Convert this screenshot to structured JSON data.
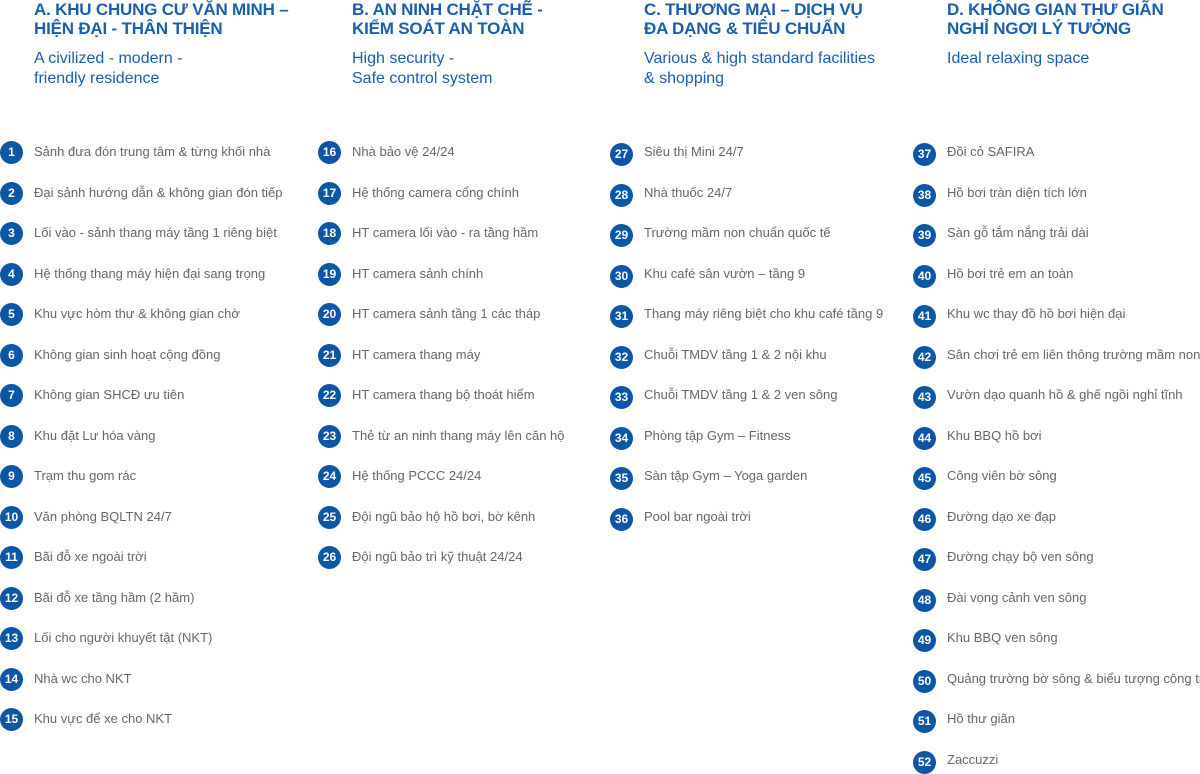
{
  "colors": {
    "accent": "#1b5eab",
    "badge": "#0d55a5",
    "text": "#666666"
  },
  "columns": [
    {
      "title": [
        "A. KHU CHUNG CƯ VĂN MINH –",
        "HIỆN ĐẠI - THÂN THIỆN"
      ],
      "subtitle": [
        "A civilized - modern -",
        "friendly residence"
      ],
      "items": [
        {
          "n": "1",
          "label": "Sảnh đưa đón trung tâm & từng khối nhà"
        },
        {
          "n": "2",
          "label": "Đại sảnh hướng dẫn & không gian đón tiếp"
        },
        {
          "n": "3",
          "label": "Lối vào - sảnh thang máy tầng 1 riêng biệt"
        },
        {
          "n": "4",
          "label": "Hệ thống thang máy hiện đại sang trọng"
        },
        {
          "n": "5",
          "label": "Khu vực hòm thư & không gian chờ"
        },
        {
          "n": "6",
          "label": "Không gian sinh hoạt cộng đồng"
        },
        {
          "n": "7",
          "label": "Không gian SHCĐ ưu tiên"
        },
        {
          "n": "8",
          "label": "Khu đặt Lư hóa vàng"
        },
        {
          "n": "9",
          "label": "Trạm thu gom rác"
        },
        {
          "n": "10",
          "label": "Văn phòng BQLTN 24/7"
        },
        {
          "n": "11",
          "label": "Bãi đỗ xe ngoài trời"
        },
        {
          "n": "12",
          "label": "Bãi đỗ xe tầng hầm (2 hầm)"
        },
        {
          "n": "13",
          "label": "Lối cho người khuyết tật (NKT)"
        },
        {
          "n": "14",
          "label": "Nhà wc cho NKT"
        },
        {
          "n": "15",
          "label": "Khu vực để xe cho NKT"
        }
      ]
    },
    {
      "title": [
        "B. AN NINH CHẶT CHẼ -",
        "KIỂM SOÁT AN TOÀN"
      ],
      "subtitle": [
        "High security -",
        "Safe control system"
      ],
      "items": [
        {
          "n": "16",
          "label": "Nhà bảo vệ 24/24"
        },
        {
          "n": "17",
          "label": "Hệ thống camera cổng chính"
        },
        {
          "n": "18",
          "label": "HT camera lối vào - ra tầng hầm"
        },
        {
          "n": "19",
          "label": "HT camera sảnh chính"
        },
        {
          "n": "20",
          "label": "HT camera sảnh tầng 1 các tháp"
        },
        {
          "n": "21",
          "label": "HT camera thang máy"
        },
        {
          "n": "22",
          "label": "HT camera thang bộ thoát hiểm"
        },
        {
          "n": "23",
          "label": "Thẻ từ an ninh thang máy lên căn hộ"
        },
        {
          "n": "24",
          "label": "Hệ thống PCCC 24/24"
        },
        {
          "n": "25",
          "label": "Đội ngũ bảo hộ hồ bơi, bờ kênh"
        },
        {
          "n": "26",
          "label": "Đội ngũ bảo trì kỹ thuật 24/24"
        }
      ]
    },
    {
      "title": [
        "C. THƯƠNG MẠI – DỊCH VỤ",
        "ĐA DẠNG & TIÊU CHUẨN"
      ],
      "subtitle": [
        "Various & high standard facilities",
        "& shopping"
      ],
      "items": [
        {
          "n": "27",
          "label": "Siêu thị Mini 24/7"
        },
        {
          "n": "28",
          "label": "Nhà thuốc 24/7"
        },
        {
          "n": "29",
          "label": "Trường mầm non chuẩn quốc tế"
        },
        {
          "n": "30",
          "label": "Khu café sân vườn – tầng 9"
        },
        {
          "n": "31",
          "label": "Thang máy riêng biệt cho khu café tầng 9"
        },
        {
          "n": "32",
          "label": "Chuỗi TMDV tầng 1 & 2 nội khu"
        },
        {
          "n": "33",
          "label": "Chuỗi TMDV tầng 1 & 2 ven sông"
        },
        {
          "n": "34",
          "label": "Phòng tập Gym – Fitness"
        },
        {
          "n": "35",
          "label": "Sàn tập Gym – Yoga garden"
        },
        {
          "n": "36",
          "label": "Pool bar ngoài trời"
        }
      ]
    },
    {
      "title": [
        "D. KHÔNG GIAN THƯ GIÃN",
        "NGHỈ NGƠI LÝ TƯỞNG"
      ],
      "subtitle": [
        "Ideal relaxing space"
      ],
      "items": [
        {
          "n": "37",
          "label": "Đồi cỏ SAFIRA"
        },
        {
          "n": "38",
          "label": "Hồ bơi tràn diện tích lớn"
        },
        {
          "n": "39",
          "label": "Sàn gỗ tắm nắng trải dài"
        },
        {
          "n": "40",
          "label": "Hồ bơi trẻ em an toàn"
        },
        {
          "n": "41",
          "label": "Khu wc thay đồ hồ bơi hiện đại"
        },
        {
          "n": "42",
          "label": "Sân chơi trẻ em liên thông trường mầm non"
        },
        {
          "n": "43",
          "label": "Vườn dạo quanh hồ & ghế ngồi nghỉ tĩnh"
        },
        {
          "n": "44",
          "label": "Khu BBQ hồ bơi"
        },
        {
          "n": "45",
          "label": "Công viên bờ sông"
        },
        {
          "n": "46",
          "label": "Đường dạo xe đạp"
        },
        {
          "n": "47",
          "label": "Đường chạy bộ ven sông"
        },
        {
          "n": "48",
          "label": "Đài vọng cảnh ven sông"
        },
        {
          "n": "49",
          "label": "Khu BBQ ven sông"
        },
        {
          "n": "50",
          "label": "Quảng trường bờ sông & biểu tượng công trình"
        },
        {
          "n": "51",
          "label": "Hồ thư giãn"
        },
        {
          "n": "52",
          "label": "Zaccuzzi"
        }
      ]
    }
  ]
}
